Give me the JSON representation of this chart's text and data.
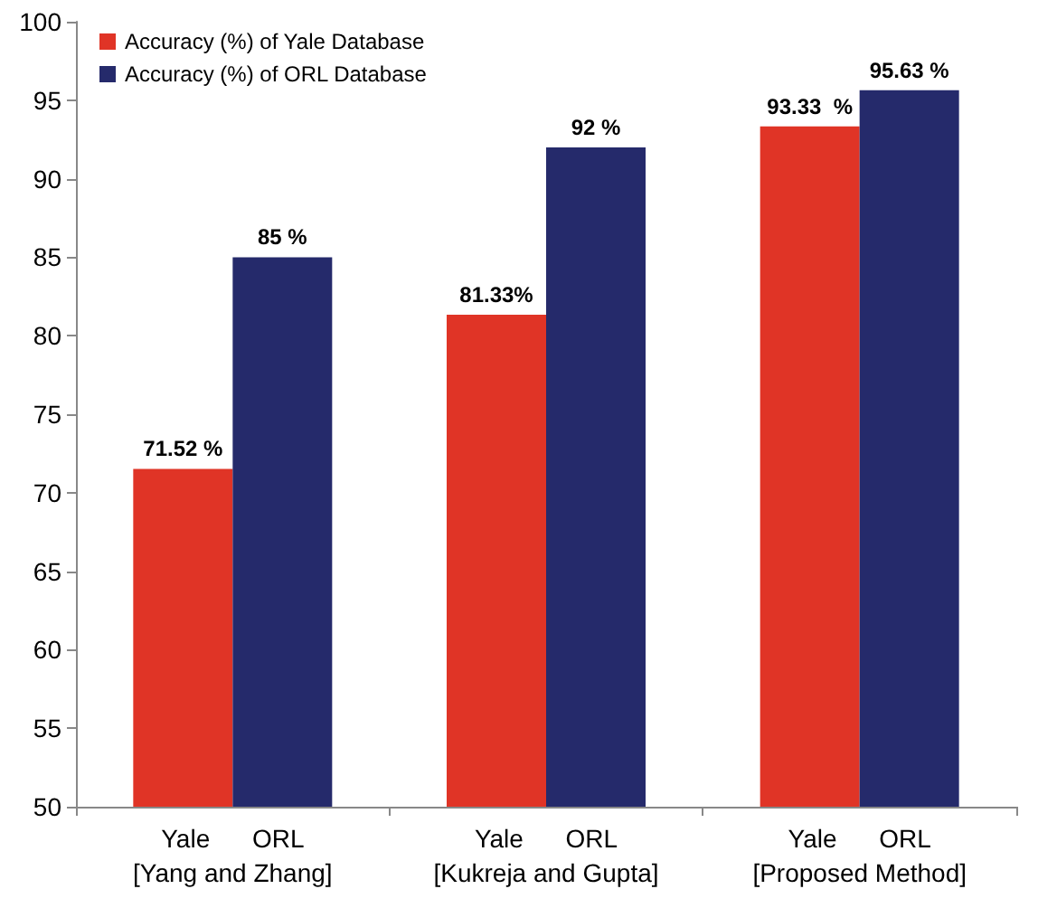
{
  "chart_data": {
    "type": "bar",
    "categories": [
      "Yale      ORL\n[Yang and Zhang]",
      "Yale      ORL\n[Kukreja and Gupta]",
      "Yale      ORL\n[Proposed Method]"
    ],
    "series": [
      {
        "name": "Accuracy (%) of Yale Database",
        "color": "#e03426",
        "values": [
          71.52,
          81.33,
          93.33
        ],
        "value_labels": [
          "71.52 %",
          "81.33%",
          "93.33  %"
        ]
      },
      {
        "name": "Accuracy (%) of ORL Database",
        "color": "#252a6b",
        "values": [
          85,
          92,
          95.63
        ],
        "value_labels": [
          "85 %",
          "92 %",
          "95.63 %"
        ]
      }
    ],
    "ylim": [
      50,
      100
    ],
    "yticks": [
      50,
      55,
      60,
      65,
      70,
      75,
      80,
      85,
      90,
      95,
      100
    ],
    "grid": false,
    "legend": "top left"
  }
}
